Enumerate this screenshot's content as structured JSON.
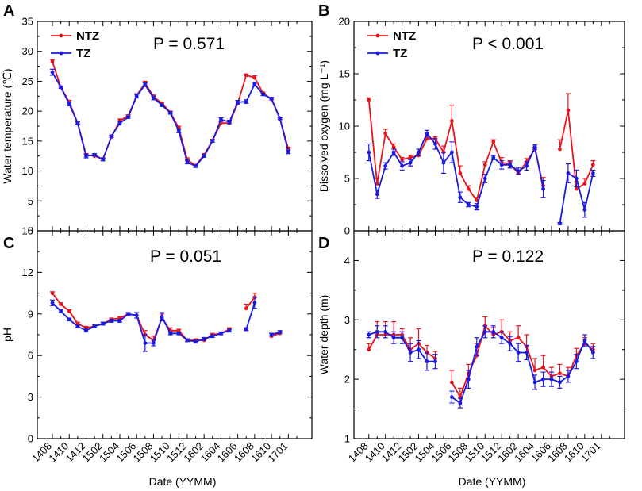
{
  "figure": {
    "xlabel": "Date (YYMM)",
    "ntz_color": "#e8141c",
    "tz_color": "#1a1ae0"
  },
  "chart_data": [
    {
      "type": "line",
      "panel": "A",
      "ylabel": "Water temperature (℃)",
      "ylim": [
        0,
        35
      ],
      "yticks": [
        0,
        5,
        10,
        15,
        20,
        25,
        30,
        35
      ],
      "annotation": "P = 0.571",
      "legend": [
        "NTZ",
        "TZ"
      ],
      "series": [
        {
          "name": "NTZ",
          "color": "#e8141c",
          "values": [
            28.3,
            24.0,
            21.5,
            18.0,
            12.7,
            12.5,
            12.0,
            15.7,
            18.4,
            19.2,
            22.6,
            24.7,
            22.4,
            21.3,
            19.8,
            17.2,
            11.9,
            10.9,
            12.7,
            15.1,
            18.0,
            18.0,
            21.3,
            26.0,
            25.6,
            23.0,
            22.0,
            18.7,
            13.7
          ],
          "errors": [
            0.3,
            0.2,
            0.3,
            0.2,
            0.2,
            0.2,
            0.2,
            0.2,
            0.3,
            0.2,
            0.3,
            0.3,
            0.3,
            0.2,
            0.2,
            0.3,
            0.3,
            0.2,
            0.2,
            0.2,
            0.3,
            0.3,
            0.3,
            0.2,
            0.3,
            0.2,
            0.2,
            0.2,
            0.3
          ]
        },
        {
          "name": "TZ",
          "color": "#1a1ae0",
          "values": [
            26.5,
            24.0,
            21.2,
            18.0,
            12.5,
            12.7,
            11.9,
            15.8,
            18.0,
            19.0,
            22.5,
            24.4,
            22.2,
            21.0,
            19.7,
            16.7,
            11.5,
            10.8,
            12.5,
            15.0,
            18.6,
            18.2,
            21.5,
            21.6,
            24.5,
            22.8,
            22.1,
            18.8,
            13.2
          ],
          "errors": [
            0.5,
            0.2,
            0.3,
            0.2,
            0.3,
            0.2,
            0.2,
            0.2,
            0.3,
            0.2,
            0.3,
            0.3,
            0.3,
            0.2,
            0.2,
            0.3,
            0.3,
            0.2,
            0.2,
            0.2,
            0.3,
            0.3,
            0.3,
            0.3,
            0.3,
            0.2,
            0.2,
            0.2,
            0.3
          ]
        }
      ]
    },
    {
      "type": "line",
      "panel": "B",
      "ylabel": "Dissolved oxygen (mg L⁻¹)",
      "ylim": [
        0,
        20
      ],
      "yticks": [
        0,
        5,
        10,
        15,
        20
      ],
      "annotation": "P < 0.001",
      "legend": [
        "NTZ",
        "TZ"
      ],
      "series": [
        {
          "name": "NTZ",
          "color": "#e8141c",
          "values": [
            12.5,
            4.5,
            9.3,
            8.0,
            6.8,
            7.0,
            7.2,
            8.8,
            8.8,
            7.5,
            10.5,
            5.5,
            4.0,
            2.9,
            6.3,
            8.5,
            6.5,
            6.4,
            5.5,
            6.6,
            7.8,
            4.3,
            null,
            7.8,
            11.5,
            4.0,
            4.5,
            6.3
          ],
          "errors": [
            0.2,
            0.5,
            0.4,
            0.3,
            0.2,
            0.2,
            0.2,
            0.3,
            0.2,
            0.6,
            1.5,
            0.7,
            0.3,
            0.3,
            0.3,
            0.2,
            0.5,
            0.3,
            0.3,
            0.3,
            0.2,
            0.8,
            null,
            0.9,
            1.6,
            0.7,
            0.5,
            0.4
          ]
        },
        {
          "name": "TZ",
          "color": "#1a1ae0",
          "values": [
            7.5,
            3.5,
            6.2,
            7.5,
            6.2,
            6.5,
            7.5,
            9.3,
            8.3,
            6.5,
            7.5,
            3.2,
            2.5,
            2.3,
            5.0,
            7.0,
            6.3,
            6.3,
            5.7,
            6.2,
            8.0,
            4.0,
            null,
            0.7,
            5.5,
            5.0,
            2.0,
            5.5
          ],
          "errors": [
            0.8,
            0.4,
            0.3,
            0.3,
            0.4,
            0.3,
            0.3,
            0.3,
            0.5,
            1.0,
            1.0,
            0.5,
            0.2,
            0.3,
            0.4,
            0.2,
            0.4,
            0.3,
            0.3,
            0.4,
            0.2,
            0.8,
            null,
            0.1,
            0.9,
            0.8,
            0.7,
            0.3
          ]
        }
      ]
    },
    {
      "type": "line",
      "panel": "C",
      "ylabel": "pH",
      "ylim": [
        0,
        15
      ],
      "yticks": [
        0,
        3,
        6,
        9,
        12,
        15
      ],
      "annotation": "P = 0.051",
      "legend": [],
      "series": [
        {
          "name": "NTZ",
          "color": "#e8141c",
          "values": [
            10.5,
            9.7,
            9.2,
            8.3,
            8.0,
            8.1,
            8.3,
            8.6,
            8.7,
            9.0,
            8.9,
            7.5,
            7.1,
            8.7,
            7.8,
            7.8,
            7.1,
            7.1,
            7.1,
            7.5,
            7.6,
            7.9,
            null,
            9.4,
            10.2,
            null,
            7.4,
            7.6
          ],
          "errors": [
            0.1,
            0.1,
            0.1,
            0.1,
            0.1,
            0.1,
            0.1,
            0.1,
            0.1,
            0.1,
            0.2,
            0.3,
            0.3,
            0.3,
            0.2,
            0.1,
            0.1,
            0.1,
            0.1,
            0.1,
            0.1,
            0.1,
            null,
            0.3,
            0.3,
            null,
            0.2,
            0.1
          ]
        },
        {
          "name": "TZ",
          "color": "#1a1ae0",
          "values": [
            9.8,
            9.2,
            8.6,
            8.1,
            7.8,
            8.1,
            8.3,
            8.5,
            8.5,
            9.0,
            8.9,
            6.9,
            6.9,
            8.8,
            7.6,
            7.6,
            7.1,
            7.0,
            7.2,
            7.4,
            7.6,
            7.8,
            null,
            7.9,
            9.8,
            null,
            7.5,
            7.7
          ],
          "errors": [
            0.2,
            0.1,
            0.1,
            0.1,
            0.1,
            0.1,
            0.1,
            0.1,
            0.1,
            0.1,
            0.2,
            0.6,
            0.2,
            0.3,
            0.1,
            0.1,
            0.1,
            0.1,
            0.1,
            0.1,
            0.1,
            0.1,
            null,
            0.1,
            0.4,
            null,
            0.1,
            0.1
          ]
        }
      ]
    },
    {
      "type": "line",
      "panel": "D",
      "ylabel": "Water depth (m)",
      "ylim": [
        1,
        4.5
      ],
      "yticks": [
        1,
        2,
        3,
        4
      ],
      "annotation": "P = 0.122",
      "legend": [],
      "series": [
        {
          "name": "NTZ",
          "color": "#e8141c",
          "values": [
            2.5,
            2.75,
            2.75,
            2.75,
            2.75,
            2.5,
            2.6,
            2.45,
            2.35,
            null,
            1.95,
            1.7,
            2.1,
            2.4,
            2.9,
            2.75,
            2.8,
            2.65,
            2.7,
            2.55,
            2.15,
            2.2,
            2.05,
            2.1,
            2.05,
            2.4,
            2.6,
            2.5
          ],
          "errors": [
            0.1,
            0.22,
            0.22,
            0.22,
            0.1,
            0.2,
            0.25,
            0.12,
            0.12,
            null,
            0.2,
            0.15,
            0.15,
            0.2,
            0.15,
            0.12,
            0.2,
            0.15,
            0.2,
            0.2,
            0.2,
            0.2,
            0.15,
            0.15,
            0.15,
            0.12,
            0.1,
            0.1
          ]
        },
        {
          "name": "TZ",
          "color": "#1a1ae0",
          "values": [
            2.75,
            2.8,
            2.8,
            2.7,
            2.7,
            2.45,
            2.5,
            2.3,
            2.3,
            null,
            1.7,
            1.6,
            2.0,
            2.55,
            2.8,
            2.8,
            2.7,
            2.6,
            2.45,
            2.45,
            1.95,
            2.0,
            2.0,
            1.95,
            2.05,
            2.3,
            2.65,
            2.45
          ],
          "errors": [
            0.05,
            0.1,
            0.1,
            0.1,
            0.1,
            0.15,
            0.15,
            0.15,
            0.12,
            null,
            0.1,
            0.08,
            0.15,
            0.15,
            0.1,
            0.1,
            0.1,
            0.12,
            0.15,
            0.12,
            0.12,
            0.12,
            0.12,
            0.1,
            0.1,
            0.12,
            0.1,
            0.1
          ]
        }
      ]
    }
  ],
  "xticks": [
    "1408",
    "1410",
    "1412",
    "1502",
    "1504",
    "1506",
    "1508",
    "1510",
    "1512",
    "1602",
    "1604",
    "1606",
    "1608",
    "1610",
    "1701"
  ]
}
